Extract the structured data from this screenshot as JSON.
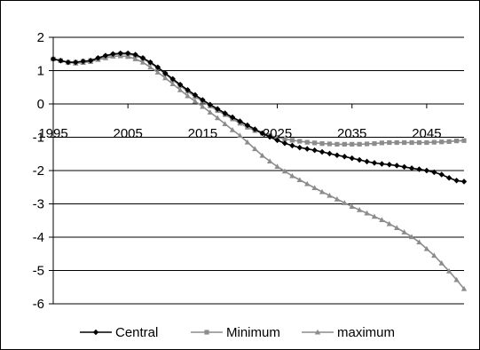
{
  "chart_data": {
    "type": "line",
    "title": "",
    "xlabel": "",
    "ylabel": "",
    "xlim": [
      1995,
      2050
    ],
    "ylim": [
      -6,
      2
    ],
    "x_ticks": [
      1995,
      2005,
      2015,
      2025,
      2035,
      2045
    ],
    "x_tick_labels": [
      "1995",
      "2005",
      "2015",
      "2025",
      "2035",
      "2045"
    ],
    "y_ticks": [
      2,
      1,
      0,
      -1,
      -2,
      -3,
      -4,
      -5,
      -6
    ],
    "y_tick_labels": [
      "2",
      "1",
      "0",
      "-1",
      "-2",
      "-3",
      "-4",
      "-5",
      "-6"
    ],
    "grid": "horizontal",
    "legend_position": "bottom",
    "series": [
      {
        "name": "Central",
        "color": "#000000",
        "marker": "diamond",
        "x": [
          1995,
          1996,
          1997,
          1998,
          1999,
          2000,
          2001,
          2002,
          2003,
          2004,
          2005,
          2006,
          2007,
          2008,
          2009,
          2010,
          2011,
          2012,
          2013,
          2014,
          2015,
          2016,
          2017,
          2018,
          2019,
          2020,
          2021,
          2022,
          2023,
          2024,
          2025,
          2026,
          2027,
          2028,
          2029,
          2030,
          2031,
          2032,
          2033,
          2034,
          2035,
          2036,
          2037,
          2038,
          2039,
          2040,
          2041,
          2042,
          2043,
          2044,
          2045,
          2046,
          2047,
          2048,
          2049,
          2050
        ],
        "y": [
          1.35,
          1.3,
          1.25,
          1.25,
          1.28,
          1.3,
          1.38,
          1.45,
          1.5,
          1.52,
          1.52,
          1.48,
          1.38,
          1.25,
          1.1,
          0.92,
          0.75,
          0.58,
          0.42,
          0.27,
          0.12,
          -0.02,
          -0.15,
          -0.28,
          -0.4,
          -0.52,
          -0.64,
          -0.76,
          -0.88,
          -0.99,
          -1.09,
          -1.18,
          -1.25,
          -1.31,
          -1.35,
          -1.39,
          -1.44,
          -1.49,
          -1.54,
          -1.58,
          -1.63,
          -1.68,
          -1.73,
          -1.77,
          -1.8,
          -1.82,
          -1.85,
          -1.89,
          -1.93,
          -1.96,
          -2.0,
          -2.05,
          -2.12,
          -2.22,
          -2.3,
          -2.33
        ]
      },
      {
        "name": "Minimum",
        "color": "#8c8c8c",
        "marker": "square",
        "x": [
          1995,
          1996,
          1997,
          1998,
          1999,
          2000,
          2001,
          2002,
          2003,
          2004,
          2005,
          2006,
          2007,
          2008,
          2009,
          2010,
          2011,
          2012,
          2013,
          2014,
          2015,
          2016,
          2017,
          2018,
          2019,
          2020,
          2021,
          2022,
          2023,
          2024,
          2025,
          2026,
          2027,
          2028,
          2029,
          2030,
          2031,
          2032,
          2033,
          2034,
          2035,
          2036,
          2037,
          2038,
          2039,
          2040,
          2041,
          2042,
          2043,
          2044,
          2045,
          2046,
          2047,
          2048,
          2049,
          2050
        ],
        "y": [
          1.35,
          1.3,
          1.25,
          1.25,
          1.28,
          1.3,
          1.36,
          1.43,
          1.48,
          1.5,
          1.5,
          1.45,
          1.36,
          1.23,
          1.08,
          0.9,
          0.72,
          0.55,
          0.38,
          0.22,
          0.08,
          -0.06,
          -0.2,
          -0.32,
          -0.45,
          -0.58,
          -0.7,
          -0.8,
          -0.88,
          -0.95,
          -1.0,
          -1.05,
          -1.09,
          -1.12,
          -1.15,
          -1.17,
          -1.19,
          -1.2,
          -1.21,
          -1.21,
          -1.21,
          -1.21,
          -1.2,
          -1.19,
          -1.17,
          -1.16,
          -1.16,
          -1.16,
          -1.16,
          -1.16,
          -1.16,
          -1.15,
          -1.14,
          -1.13,
          -1.11,
          -1.1
        ]
      },
      {
        "name": "maximum",
        "color": "#8c8c8c",
        "marker": "triangle",
        "x": [
          1995,
          1996,
          1997,
          1998,
          1999,
          2000,
          2001,
          2002,
          2003,
          2004,
          2005,
          2006,
          2007,
          2008,
          2009,
          2010,
          2011,
          2012,
          2013,
          2014,
          2015,
          2016,
          2017,
          2018,
          2019,
          2020,
          2021,
          2022,
          2023,
          2024,
          2025,
          2026,
          2027,
          2028,
          2029,
          2030,
          2031,
          2032,
          2033,
          2034,
          2035,
          2036,
          2037,
          2038,
          2039,
          2040,
          2041,
          2042,
          2043,
          2044,
          2045,
          2046,
          2047,
          2048,
          2049,
          2050
        ],
        "y": [
          1.35,
          1.3,
          1.25,
          1.22,
          1.24,
          1.27,
          1.33,
          1.38,
          1.43,
          1.44,
          1.42,
          1.35,
          1.25,
          1.1,
          0.95,
          0.78,
          0.6,
          0.42,
          0.24,
          0.08,
          -0.08,
          -0.25,
          -0.42,
          -0.6,
          -0.78,
          -0.95,
          -1.15,
          -1.35,
          -1.55,
          -1.72,
          -1.88,
          -2.02,
          -2.16,
          -2.28,
          -2.4,
          -2.52,
          -2.64,
          -2.75,
          -2.86,
          -2.97,
          -3.08,
          -3.18,
          -3.28,
          -3.38,
          -3.48,
          -3.6,
          -3.72,
          -3.85,
          -3.99,
          -4.15,
          -4.35,
          -4.55,
          -4.78,
          -5.02,
          -5.28,
          -5.55
        ]
      }
    ]
  }
}
